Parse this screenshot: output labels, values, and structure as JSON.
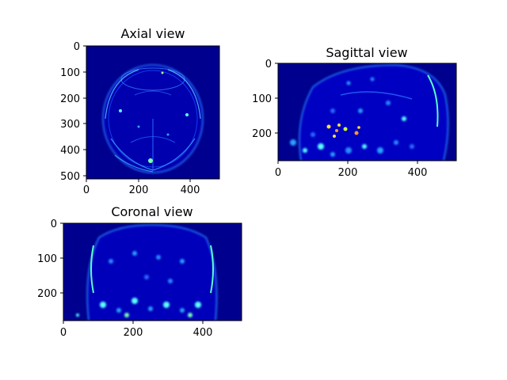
{
  "panels": [
    {
      "id": "axial",
      "title": "Axial view",
      "xticks": [
        "0",
        "200",
        "400"
      ],
      "yticks": [
        "0",
        "100",
        "200",
        "300",
        "400",
        "500"
      ],
      "xlim": [
        0,
        512
      ],
      "ylim": [
        0,
        512
      ]
    },
    {
      "id": "sagittal",
      "title": "Sagittal view",
      "xticks": [
        "0",
        "200",
        "400"
      ],
      "yticks": [
        "0",
        "100",
        "200"
      ],
      "xlim": [
        0,
        512
      ],
      "ylim": [
        0,
        280
      ]
    },
    {
      "id": "coronal",
      "title": "Coronal view",
      "xticks": [
        "0",
        "200",
        "400"
      ],
      "yticks": [
        "0",
        "100",
        "200"
      ],
      "xlim": [
        0,
        512
      ],
      "ylim": [
        0,
        280
      ]
    }
  ],
  "colors": {
    "background": "#00008f",
    "colormap": "jet"
  }
}
